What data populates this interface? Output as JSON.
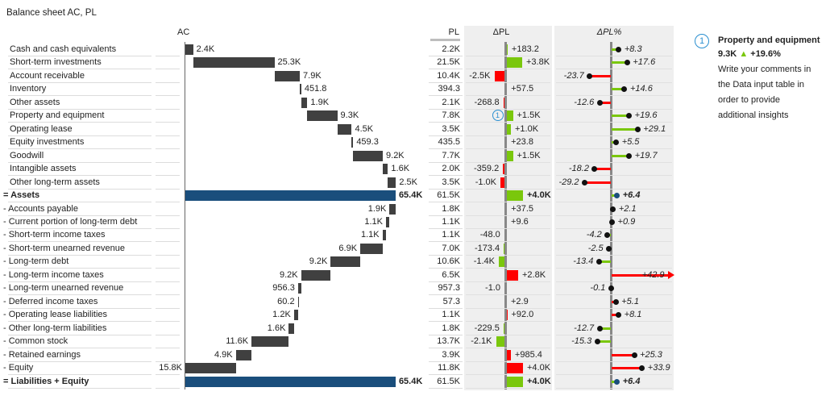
{
  "title": "Balance sheet AC, PL",
  "headers": {
    "ac": "AC",
    "pl": "PL",
    "dpl": "ΔPL",
    "dplp": "ΔPL%"
  },
  "colors": {
    "bar": "#404040",
    "total": "#1a4e7c",
    "good": "#7ac70c",
    "bad": "#ff0000",
    "axis": "#808080"
  },
  "comment": {
    "marker": "1",
    "title": "Property and equipment",
    "value": "9.3K",
    "arrow": "▲",
    "delta": "+19.6%",
    "text": [
      "Write your comments in",
      "the Data input table in",
      "order to provide",
      "additional insights"
    ]
  },
  "chart_data": {
    "type": "table",
    "rows": [
      {
        "label": "Cash and cash equivalents",
        "kind": "asset",
        "ac": "2.4K",
        "ac_v": 2.4,
        "pl": "2.2K",
        "dpl": "+183.2",
        "dpl_v": 0.1832,
        "dplp": "+8.3",
        "dplp_v": 8.3
      },
      {
        "label": "Short-term investments",
        "kind": "asset",
        "ac": "25.3K",
        "ac_v": 25.3,
        "pl": "21.5K",
        "dpl": "+3.8K",
        "dpl_v": 3.8,
        "dplp": "+17.6",
        "dplp_v": 17.6
      },
      {
        "label": "Account receivable",
        "kind": "asset",
        "ac": "7.9K",
        "ac_v": 7.9,
        "pl": "10.4K",
        "dpl": "-2.5K",
        "dpl_v": -2.5,
        "dplp": "-23.7",
        "dplp_v": -23.7
      },
      {
        "label": "Inventory",
        "kind": "asset",
        "ac": "451.8",
        "ac_v": 0.4518,
        "pl": "394.3",
        "dpl": "+57.5",
        "dpl_v": 0.0575,
        "dplp": "+14.6",
        "dplp_v": 14.6
      },
      {
        "label": "Other assets",
        "kind": "asset",
        "ac": "1.9K",
        "ac_v": 1.9,
        "pl": "2.1K",
        "dpl": "-268.8",
        "dpl_v": -0.2688,
        "dplp": "-12.6",
        "dplp_v": -12.6
      },
      {
        "label": "Property and equipment",
        "kind": "asset",
        "ac": "9.3K",
        "ac_v": 9.3,
        "pl": "7.8K",
        "dpl": "+1.5K",
        "dpl_v": 1.5,
        "dplp": "+19.6",
        "dplp_v": 19.6,
        "marker": "1"
      },
      {
        "label": "Operating lease",
        "kind": "asset",
        "ac": "4.5K",
        "ac_v": 4.5,
        "pl": "3.5K",
        "dpl": "+1.0K",
        "dpl_v": 1.0,
        "dplp": "+29.1",
        "dplp_v": 29.1
      },
      {
        "label": "Equity investments",
        "kind": "asset",
        "ac": "459.3",
        "ac_v": 0.4593,
        "pl": "435.5",
        "dpl": "+23.8",
        "dpl_v": 0.0238,
        "dplp": "+5.5",
        "dplp_v": 5.5
      },
      {
        "label": "Goodwill",
        "kind": "asset",
        "ac": "9.2K",
        "ac_v": 9.2,
        "pl": "7.7K",
        "dpl": "+1.5K",
        "dpl_v": 1.5,
        "dplp": "+19.7",
        "dplp_v": 19.7
      },
      {
        "label": "Intangible assets",
        "kind": "asset",
        "ac": "1.6K",
        "ac_v": 1.6,
        "pl": "2.0K",
        "dpl": "-359.2",
        "dpl_v": -0.3592,
        "dplp": "-18.2",
        "dplp_v": -18.2
      },
      {
        "label": "Other long-term assets",
        "kind": "asset",
        "ac": "2.5K",
        "ac_v": 2.5,
        "pl": "3.5K",
        "dpl": "-1.0K",
        "dpl_v": -1.0,
        "dplp": "-29.2",
        "dplp_v": -29.2
      },
      {
        "label": "= Assets",
        "kind": "total",
        "ac": "65.4K",
        "ac_v": 65.4,
        "pl": "61.5K",
        "dpl": "+4.0K",
        "dpl_v": 4.0,
        "dplp": "+6.4",
        "dplp_v": 6.4
      },
      {
        "label": "- Accounts payable",
        "kind": "liability",
        "ac": "1.9K",
        "ac_v": 1.9,
        "pl": "1.8K",
        "dpl": "+37.5",
        "dpl_v": 0.0375,
        "dplp": "+2.1",
        "dplp_v": 2.1
      },
      {
        "label": "- Current portion of long-term debt",
        "kind": "liability",
        "ac": "1.1K",
        "ac_v": 1.1,
        "pl": "1.1K",
        "dpl": "+9.6",
        "dpl_v": 0.0096,
        "dplp": "+0.9",
        "dplp_v": 0.9
      },
      {
        "label": "- Short-term income taxes",
        "kind": "liability",
        "ac": "1.1K",
        "ac_v": 1.1,
        "pl": "1.1K",
        "dpl": "-48.0",
        "dpl_v": -0.048,
        "dplp": "-4.2",
        "dplp_v": -4.2
      },
      {
        "label": "- Short-term unearned revenue",
        "kind": "liability",
        "ac": "6.9K",
        "ac_v": 6.9,
        "pl": "7.0K",
        "dpl": "-173.4",
        "dpl_v": -0.1734,
        "dplp": "-2.5",
        "dplp_v": -2.5
      },
      {
        "label": "- Long-term debt",
        "kind": "liability",
        "ac": "9.2K",
        "ac_v": 9.2,
        "pl": "10.6K",
        "dpl": "-1.4K",
        "dpl_v": -1.4,
        "dplp": "-13.4",
        "dplp_v": -13.4
      },
      {
        "label": "- Long-term income taxes",
        "kind": "liability",
        "ac": "9.2K",
        "ac_v": 9.2,
        "pl": "6.5K",
        "dpl": "+2.8K",
        "dpl_v": 2.8,
        "dplp": "+42.9",
        "dplp_v": 42.9
      },
      {
        "label": "- Long-term unearned revenue",
        "kind": "liability",
        "ac": "956.3",
        "ac_v": 0.9563,
        "pl": "957.3",
        "dpl": "-1.0",
        "dpl_v": -0.001,
        "dplp": "-0.1",
        "dplp_v": -0.1
      },
      {
        "label": "- Deferred income taxes",
        "kind": "liability",
        "ac": "60.2",
        "ac_v": 0.0602,
        "pl": "57.3",
        "dpl": "+2.9",
        "dpl_v": 0.0029,
        "dplp": "+5.1",
        "dplp_v": 5.1
      },
      {
        "label": "- Operating lease liabilities",
        "kind": "liability",
        "ac": "1.2K",
        "ac_v": 1.2,
        "pl": "1.1K",
        "dpl": "+92.0",
        "dpl_v": 0.092,
        "dplp": "+8.1",
        "dplp_v": 8.1
      },
      {
        "label": "- Other long-term liabilities",
        "kind": "liability",
        "ac": "1.6K",
        "ac_v": 1.6,
        "pl": "1.8K",
        "dpl": "-229.5",
        "dpl_v": -0.2295,
        "dplp": "-12.7",
        "dplp_v": -12.7
      },
      {
        "label": "- Common stock",
        "kind": "liability",
        "ac": "11.6K",
        "ac_v": 11.6,
        "pl": "13.7K",
        "dpl": "-2.1K",
        "dpl_v": -2.1,
        "dplp": "-15.3",
        "dplp_v": -15.3
      },
      {
        "label": "- Retained earnings",
        "kind": "liability",
        "ac": "4.9K",
        "ac_v": 4.9,
        "pl": "3.9K",
        "dpl": "+985.4",
        "dpl_v": 0.9854,
        "dplp": "+25.3",
        "dplp_v": 25.3
      },
      {
        "label": "- Equity",
        "kind": "liability",
        "ac": "15.8K",
        "ac_v": 15.8,
        "pl": "11.8K",
        "dpl": "+4.0K",
        "dpl_v": 4.0,
        "dplp": "+33.9",
        "dplp_v": 33.9
      },
      {
        "label": "= Liabilities + Equity",
        "kind": "total",
        "ac": "65.4K",
        "ac_v": 65.4,
        "pl": "61.5K",
        "dpl": "+4.0K",
        "dpl_v": 4.0,
        "dplp": "+6.4",
        "dplp_v": 6.4
      }
    ]
  }
}
